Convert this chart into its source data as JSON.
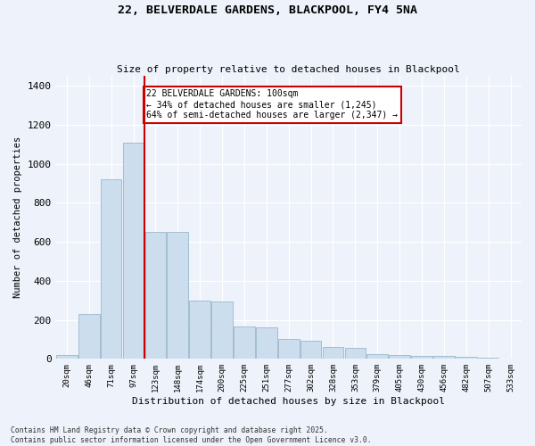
{
  "title": "22, BELVERDALE GARDENS, BLACKPOOL, FY4 5NA",
  "subtitle": "Size of property relative to detached houses in Blackpool",
  "xlabel": "Distribution of detached houses by size in Blackpool",
  "ylabel": "Number of detached properties",
  "bar_color": "#ccdded",
  "bar_edge_color": "#9ab8cc",
  "background_color": "#eef2fa",
  "annotation_box_color": "#cc0000",
  "annotation_text": "22 BELVERDALE GARDENS: 100sqm\n← 34% of detached houses are smaller (1,245)\n64% of semi-detached houses are larger (2,347) →",
  "vline_color": "#cc0000",
  "vline_after_bar": 3,
  "categories": [
    "20sqm",
    "46sqm",
    "71sqm",
    "97sqm",
    "123sqm",
    "148sqm",
    "174sqm",
    "200sqm",
    "225sqm",
    "251sqm",
    "277sqm",
    "302sqm",
    "328sqm",
    "353sqm",
    "379sqm",
    "405sqm",
    "430sqm",
    "456sqm",
    "482sqm",
    "507sqm",
    "533sqm"
  ],
  "values": [
    20,
    230,
    920,
    1110,
    650,
    650,
    300,
    295,
    165,
    160,
    100,
    95,
    60,
    55,
    25,
    22,
    15,
    13,
    10,
    5,
    3
  ],
  "ylim": [
    0,
    1450
  ],
  "yticks": [
    0,
    200,
    400,
    600,
    800,
    1000,
    1200,
    1400
  ],
  "footer": "Contains HM Land Registry data © Crown copyright and database right 2025.\nContains public sector information licensed under the Open Government Licence v3.0."
}
